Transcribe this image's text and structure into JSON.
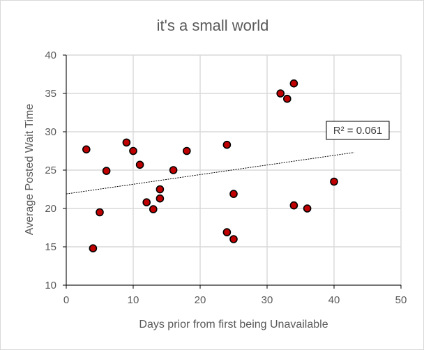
{
  "chart_data": {
    "type": "scatter",
    "title": "it's a small world",
    "xlabel": "Days prior from first being Unavailable",
    "ylabel": "Average Posted Wait Time",
    "xlim": [
      0,
      50
    ],
    "ylim": [
      10,
      40
    ],
    "xticks": [
      0,
      10,
      20,
      30,
      40,
      50
    ],
    "yticks": [
      10,
      15,
      20,
      25,
      30,
      35,
      40
    ],
    "grid": true,
    "points": [
      {
        "x": 3,
        "y": 27.7
      },
      {
        "x": 4,
        "y": 14.8
      },
      {
        "x": 5,
        "y": 19.5
      },
      {
        "x": 6,
        "y": 24.9
      },
      {
        "x": 9,
        "y": 28.6
      },
      {
        "x": 10,
        "y": 27.5
      },
      {
        "x": 11,
        "y": 25.7
      },
      {
        "x": 12,
        "y": 20.8
      },
      {
        "x": 13,
        "y": 19.9
      },
      {
        "x": 14,
        "y": 22.5
      },
      {
        "x": 14,
        "y": 21.3
      },
      {
        "x": 16,
        "y": 25.0
      },
      {
        "x": 18,
        "y": 27.5
      },
      {
        "x": 24,
        "y": 28.3
      },
      {
        "x": 24,
        "y": 16.9
      },
      {
        "x": 25,
        "y": 21.9
      },
      {
        "x": 25,
        "y": 16.0
      },
      {
        "x": 32,
        "y": 35.0
      },
      {
        "x": 33,
        "y": 34.3
      },
      {
        "x": 34,
        "y": 36.3
      },
      {
        "x": 34,
        "y": 20.4
      },
      {
        "x": 36,
        "y": 20.0
      },
      {
        "x": 40,
        "y": 23.5
      }
    ],
    "trendline": {
      "type": "linear",
      "x_start": 0,
      "y_start": 21.9,
      "x_end": 43,
      "y_end": 27.3
    },
    "r2_label": "R² = 0.061",
    "colors": {
      "marker_fill": "#c00000",
      "marker_stroke": "#000000",
      "grid": "#d9d9d9",
      "axis": "#000000",
      "trend": "#000000"
    }
  }
}
